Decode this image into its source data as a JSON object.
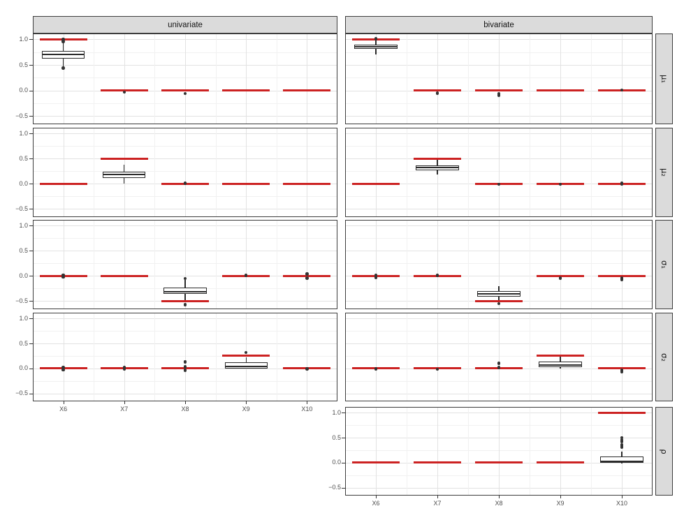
{
  "chart_data": {
    "type": "boxplot",
    "title": "",
    "facet_col_labels": [
      "univariate",
      "bivariate"
    ],
    "facet_row_labels": [
      "μ₁",
      "μ₂",
      "σ₁",
      "σ₂",
      "ρ"
    ],
    "categories": [
      "X6",
      "X7",
      "X8",
      "X9",
      "X10"
    ],
    "y_axis": {
      "tick_labels": [
        "1.0",
        "0.5",
        "0.0",
        "−0.5"
      ],
      "tick_values": [
        1.0,
        0.5,
        0.0,
        -0.5
      ],
      "minor_values": [
        0.75,
        0.25,
        -0.25
      ],
      "domain_top": 1.115,
      "domain_bottom": -0.66
    },
    "colors": {
      "true_line": "#cc2222",
      "box_border": "#2a2a2a",
      "outlier": "#333333",
      "grid_major": "#e2e2e2",
      "grid_minor": "#f1f1f1",
      "panel_border": "#3c3c3c",
      "strip_fill": "#dbdbdb",
      "axis_text": "#4d4d4d"
    },
    "legend": "none",
    "panels": [
      {
        "row": 0,
        "col": 0,
        "true_values": [
          1,
          0,
          0,
          0,
          0
        ],
        "boxes": [
          {
            "cat": 0,
            "q1": 0.62,
            "median": 0.7,
            "q3": 0.77,
            "whisker_low": 0.47,
            "whisker_high": 0.92
          }
        ],
        "points": [
          {
            "cat": 0,
            "values": [
              1.0,
              0.96,
              0.44
            ]
          },
          {
            "cat": 1,
            "values": [
              -0.03
            ]
          },
          {
            "cat": 2,
            "values": [
              -0.06
            ]
          }
        ]
      },
      {
        "row": 0,
        "col": 1,
        "true_values": [
          1,
          0,
          0,
          0,
          0
        ],
        "boxes": [
          {
            "cat": 0,
            "q1": 0.81,
            "median": 0.85,
            "q3": 0.89,
            "whisker_low": 0.71,
            "whisker_high": 0.98
          }
        ],
        "points": [
          {
            "cat": 0,
            "values": [
              1.01
            ]
          },
          {
            "cat": 1,
            "values": [
              -0.05
            ]
          },
          {
            "cat": 2,
            "values": [
              -0.06,
              -0.09
            ]
          },
          {
            "cat": 4,
            "values": [
              0.01
            ]
          }
        ]
      },
      {
        "row": 1,
        "col": 0,
        "true_values": [
          0,
          0.5,
          0,
          0,
          0
        ],
        "boxes": [
          {
            "cat": 1,
            "q1": 0.11,
            "median": 0.18,
            "q3": 0.24,
            "whisker_low": 0.01,
            "whisker_high": 0.38
          }
        ],
        "points": [
          {
            "cat": 2,
            "values": [
              0.01
            ]
          }
        ]
      },
      {
        "row": 1,
        "col": 1,
        "true_values": [
          0,
          0.5,
          0,
          0,
          0
        ],
        "boxes": [
          {
            "cat": 1,
            "q1": 0.27,
            "median": 0.32,
            "q3": 0.36,
            "whisker_low": 0.18,
            "whisker_high": 0.49
          }
        ],
        "points": [
          {
            "cat": 2,
            "values": [
              -0.01
            ]
          },
          {
            "cat": 3,
            "values": [
              -0.01
            ]
          },
          {
            "cat": 4,
            "values": [
              0.02,
              -0.01
            ]
          }
        ]
      },
      {
        "row": 2,
        "col": 0,
        "true_values": [
          0,
          0,
          -0.5,
          0,
          0
        ],
        "boxes": [
          {
            "cat": 2,
            "q1": -0.36,
            "median": -0.31,
            "q3": -0.23,
            "whisker_low": -0.5,
            "whisker_high": -0.08
          }
        ],
        "points": [
          {
            "cat": 0,
            "values": [
              0.02,
              -0.02
            ]
          },
          {
            "cat": 2,
            "values": [
              -0.05,
              -0.57
            ]
          },
          {
            "cat": 3,
            "values": [
              0.01
            ]
          },
          {
            "cat": 4,
            "values": [
              0.04,
              -0.04
            ]
          }
        ]
      },
      {
        "row": 2,
        "col": 1,
        "true_values": [
          0,
          0,
          -0.5,
          0,
          0
        ],
        "boxes": [
          {
            "cat": 2,
            "q1": -0.41,
            "median": -0.36,
            "q3": -0.3,
            "whisker_low": -0.5,
            "whisker_high": -0.2
          }
        ],
        "points": [
          {
            "cat": 0,
            "values": [
              0.02,
              -0.03
            ]
          },
          {
            "cat": 1,
            "values": [
              0.01
            ]
          },
          {
            "cat": 2,
            "values": [
              -0.55
            ]
          },
          {
            "cat": 3,
            "values": [
              -0.04
            ]
          },
          {
            "cat": 4,
            "values": [
              -0.04,
              -0.07
            ]
          }
        ]
      },
      {
        "row": 3,
        "col": 0,
        "true_values": [
          0,
          0,
          0,
          0.25,
          0
        ],
        "boxes": [
          {
            "cat": 3,
            "q1": 0.0,
            "median": 0.04,
            "q3": 0.12,
            "whisker_low": 0.0,
            "whisker_high": 0.22
          }
        ],
        "points": [
          {
            "cat": 0,
            "values": [
              0.02,
              -0.03
            ]
          },
          {
            "cat": 1,
            "values": [
              0.02,
              -0.02
            ]
          },
          {
            "cat": 2,
            "values": [
              0.13,
              0.03,
              -0.04
            ]
          },
          {
            "cat": 3,
            "values": [
              0.32
            ]
          },
          {
            "cat": 4,
            "values": [
              -0.01
            ]
          }
        ]
      },
      {
        "row": 3,
        "col": 1,
        "true_values": [
          0,
          0,
          0,
          0.25,
          0
        ],
        "boxes": [
          {
            "cat": 3,
            "q1": 0.03,
            "median": 0.07,
            "q3": 0.14,
            "whisker_low": -0.01,
            "whisker_high": 0.24
          }
        ],
        "points": [
          {
            "cat": 0,
            "values": [
              0.0,
              -0.02
            ]
          },
          {
            "cat": 1,
            "values": [
              -0.02
            ]
          },
          {
            "cat": 2,
            "values": [
              0.1,
              0.02
            ]
          },
          {
            "cat": 4,
            "values": [
              -0.04,
              -0.07
            ]
          }
        ]
      },
      {
        "row": 4,
        "col": 1,
        "true_values": [
          0,
          0,
          0,
          0,
          1
        ],
        "boxes": [
          {
            "cat": 4,
            "q1": 0.0,
            "median": 0.03,
            "q3": 0.12,
            "whisker_low": -0.02,
            "whisker_high": 0.22
          }
        ],
        "points": [
          {
            "cat": 4,
            "values": [
              0.5,
              0.46,
              0.42,
              0.35,
              0.31
            ]
          }
        ]
      }
    ]
  }
}
